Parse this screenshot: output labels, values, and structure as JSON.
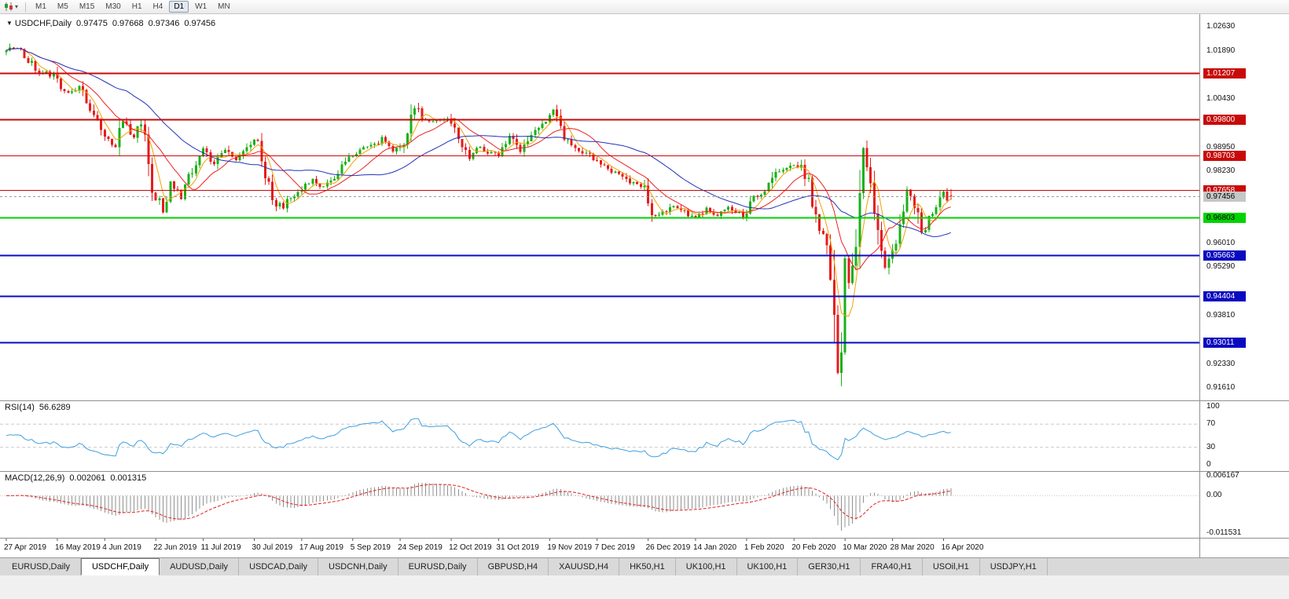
{
  "toolbar": {
    "timeframes": [
      "M1",
      "M5",
      "M15",
      "M30",
      "H1",
      "H4",
      "D1",
      "W1",
      "MN"
    ],
    "active_timeframe": "D1",
    "icons": {
      "chart_type": "candlestick-chart",
      "dropdown_caret": "▾"
    }
  },
  "chart_header": {
    "marker": "▼",
    "symbol_period": "USDCHF,Daily",
    "open": "0.97475",
    "high": "0.97668",
    "low": "0.97346",
    "close": "0.97456"
  },
  "indicators": {
    "rsi": {
      "name": "RSI(14)",
      "value": "56.6289",
      "line_color": "#3f9fdf",
      "levels": [
        {
          "label": "100",
          "value": 100
        },
        {
          "label": "70",
          "value": 70
        },
        {
          "label": "30",
          "value": 30
        },
        {
          "label": "0",
          "value": 0
        }
      ]
    },
    "macd": {
      "name": "MACD(12,26,9)",
      "main_value": "0.002061",
      "signal_value": "0.001315",
      "histogram_color": "#909090",
      "signal_color": "#e02020",
      "axis": [
        {
          "label": "0.006167",
          "value": 0.006167
        },
        {
          "label": "0.00",
          "value": 0
        },
        {
          "label": "-0.011531",
          "value": -0.011531
        }
      ]
    }
  },
  "colors": {
    "candle_up": "#18b118",
    "candle_down": "#e51c1c",
    "current_price_line": "#9a9a9a",
    "current_price_label_bg": "#c6c6c6"
  },
  "tabs": [
    {
      "label": "EURUSD,Daily",
      "active": false
    },
    {
      "label": "USDCHF,Daily",
      "active": true
    },
    {
      "label": "AUDUSD,Daily",
      "active": false
    },
    {
      "label": "USDCAD,Daily",
      "active": false
    },
    {
      "label": "USDCNH,Daily",
      "active": false
    },
    {
      "label": "EURUSD,Daily",
      "active": false
    },
    {
      "label": "GBPUSD,H4",
      "active": false
    },
    {
      "label": "XAUUSD,H4",
      "active": false
    },
    {
      "label": "HK50,H1",
      "active": false
    },
    {
      "label": "UK100,H1",
      "active": false
    },
    {
      "label": "UK100,H1",
      "active": false
    },
    {
      "label": "GER30,H1",
      "active": false
    },
    {
      "label": "FRA40,H1",
      "active": false
    },
    {
      "label": "USOil,H1",
      "active": false
    },
    {
      "label": "USDJPY,H1",
      "active": false
    }
  ],
  "chart_data": {
    "type": "candlestick",
    "symbol": "USDCHF",
    "period": "Daily",
    "num_candles": 260,
    "y_axis": {
      "min": 0.9161,
      "max": 1.0263,
      "ticks": [
        "1.02630",
        "1.01890",
        "1.00430",
        "0.98950",
        "0.98230",
        "0.96010",
        "0.95290",
        "0.93810",
        "0.92330",
        "0.91610"
      ]
    },
    "x_axis": {
      "tick_labels": [
        "27 Apr 2019",
        "16 May 2019",
        "4 Jun 2019",
        "22 Jun 2019",
        "11 Jul 2019",
        "30 Jul 2019",
        "17 Aug 2019",
        "5 Sep 2019",
        "24 Sep 2019",
        "12 Oct 2019",
        "31 Oct 2019",
        "19 Nov 2019",
        "7 Dec 2019",
        "26 Dec 2019",
        "14 Jan 2020",
        "1 Feb 2020",
        "20 Feb 2020",
        "10 Mar 2020",
        "28 Mar 2020",
        "16 Apr 2020"
      ],
      "candles_per_label": 13.5
    },
    "last_candle": {
      "open": 0.97475,
      "high": 0.97668,
      "low": 0.97346,
      "close": 0.97456
    },
    "current_price": {
      "value": 0.97456,
      "label": "0.97456"
    },
    "extremes": {
      "low": 0.9166,
      "high": 1.0212
    },
    "horizontal_levels": [
      {
        "price": 1.01207,
        "label": "1.01207",
        "color": "#c80a0a",
        "text_color": "#ffffff",
        "width": 2
      },
      {
        "price": 0.998,
        "label": "0.99800",
        "color": "#c80a0a",
        "text_color": "#ffffff",
        "width": 2
      },
      {
        "price": 0.98703,
        "label": "0.98703",
        "color": "#c80a0a",
        "text_color": "#ffffff",
        "width": 1
      },
      {
        "price": 0.97658,
        "label": "0.97658",
        "color": "#c80a0a",
        "text_color": "#ffffff",
        "width": 1
      },
      {
        "price": 0.96803,
        "label": "0.96803",
        "color": "#00d400",
        "text_color": "#000000",
        "width": 2
      },
      {
        "price": 0.95663,
        "label": "0.95663",
        "color": "#0a0ac0",
        "text_color": "#ffffff",
        "width": 2
      },
      {
        "price": 0.94404,
        "label": "0.94404",
        "color": "#0a0ac0",
        "text_color": "#ffffff",
        "width": 2
      },
      {
        "price": 0.93011,
        "label": "0.93011",
        "color": "#0a0ac0",
        "text_color": "#ffffff",
        "width": 2
      }
    ],
    "moving_averages": [
      {
        "name": "fast",
        "period": 5,
        "color": "#f0a200"
      },
      {
        "name": "medium",
        "period": 13,
        "color": "#ee2020"
      },
      {
        "name": "slow",
        "period": 34,
        "color": "#2233bb"
      }
    ],
    "close_keypoints": [
      [
        0,
        1.0185
      ],
      [
        2,
        1.02
      ],
      [
        4,
        1.0205
      ],
      [
        6,
        1.016
      ],
      [
        9,
        1.0125
      ],
      [
        13,
        1.0115
      ],
      [
        15,
        1.0075
      ],
      [
        17,
        1.006
      ],
      [
        20,
        1.0085
      ],
      [
        24,
        0.9985
      ],
      [
        27,
        0.9925
      ],
      [
        30,
        0.99
      ],
      [
        32,
        0.9975
      ],
      [
        35,
        0.993
      ],
      [
        37,
        0.9965
      ],
      [
        40,
        0.977
      ],
      [
        43,
        0.9705
      ],
      [
        45,
        0.978
      ],
      [
        48,
        0.9745
      ],
      [
        51,
        0.9825
      ],
      [
        54,
        0.9885
      ],
      [
        57,
        0.9845
      ],
      [
        60,
        0.989
      ],
      [
        63,
        0.9855
      ],
      [
        67,
        0.9905
      ],
      [
        69,
        0.9925
      ],
      [
        71,
        0.9805
      ],
      [
        74,
        0.9725
      ],
      [
        76,
        0.9715
      ],
      [
        81,
        0.9775
      ],
      [
        84,
        0.9795
      ],
      [
        87,
        0.9775
      ],
      [
        90,
        0.98
      ],
      [
        94,
        0.9865
      ],
      [
        97,
        0.9885
      ],
      [
        100,
        0.9895
      ],
      [
        103,
        0.9925
      ],
      [
        106,
        0.9885
      ],
      [
        108,
        0.9895
      ],
      [
        110,
        0.9935
      ],
      [
        112,
        1.002
      ],
      [
        114,
        0.998
      ],
      [
        117,
        0.9975
      ],
      [
        121,
        0.9985
      ],
      [
        124,
        0.9935
      ],
      [
        127,
        0.9865
      ],
      [
        130,
        0.9895
      ],
      [
        135,
        0.9865
      ],
      [
        138,
        0.9925
      ],
      [
        141,
        0.9885
      ],
      [
        144,
        0.993
      ],
      [
        148,
        0.9975
      ],
      [
        150,
        1.0005
      ],
      [
        153,
        0.9925
      ],
      [
        156,
        0.9895
      ],
      [
        162,
        0.9855
      ],
      [
        165,
        0.9825
      ],
      [
        168,
        0.9815
      ],
      [
        171,
        0.9785
      ],
      [
        175,
        0.9775
      ],
      [
        177,
        0.968
      ],
      [
        180,
        0.9695
      ],
      [
        183,
        0.9715
      ],
      [
        189,
        0.9675
      ],
      [
        192,
        0.9705
      ],
      [
        195,
        0.9685
      ],
      [
        198,
        0.9715
      ],
      [
        202,
        0.9685
      ],
      [
        205,
        0.9745
      ],
      [
        208,
        0.975
      ],
      [
        211,
        0.9815
      ],
      [
        216,
        0.9845
      ],
      [
        218,
        0.983
      ],
      [
        220,
        0.978
      ],
      [
        222,
        0.9695
      ],
      [
        224,
        0.9615
      ],
      [
        226,
        0.9525
      ],
      [
        227,
        0.9435
      ],
      [
        228,
        0.9185
      ],
      [
        229,
        0.9345
      ],
      [
        230,
        0.9585
      ],
      [
        231,
        0.9465
      ],
      [
        232,
        0.9535
      ],
      [
        233,
        0.9625
      ],
      [
        234,
        0.9745
      ],
      [
        235,
        0.9875
      ],
      [
        236,
        0.9855
      ],
      [
        237,
        0.9795
      ],
      [
        238,
        0.9725
      ],
      [
        239,
        0.9655
      ],
      [
        240,
        0.9585
      ],
      [
        241,
        0.9535
      ],
      [
        243,
        0.9585
      ],
      [
        245,
        0.9635
      ],
      [
        247,
        0.9755
      ],
      [
        249,
        0.9725
      ],
      [
        251,
        0.9635
      ],
      [
        253,
        0.9685
      ],
      [
        255,
        0.9715
      ],
      [
        257,
        0.9765
      ],
      [
        258,
        0.9735
      ],
      [
        259,
        0.97456
      ]
    ]
  }
}
